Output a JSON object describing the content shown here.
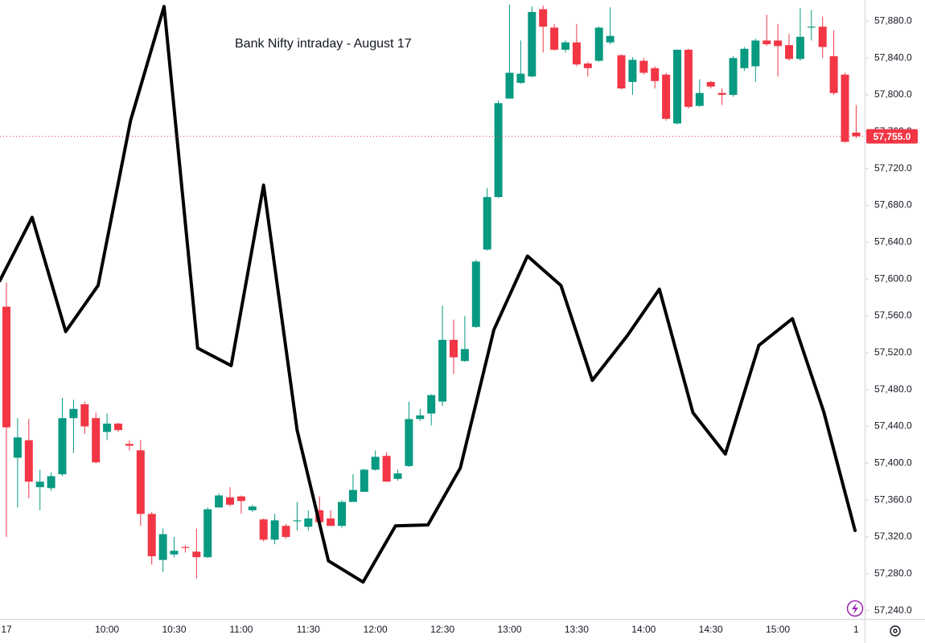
{
  "chart_data": {
    "type": "candlestick",
    "title": "Bank Nifty intraday - August 17",
    "categories": [
      "17",
      null,
      null,
      null,
      null,
      null,
      null,
      null,
      null,
      "10:00",
      null,
      null,
      null,
      null,
      null,
      "10:30",
      null,
      null,
      null,
      null,
      null,
      "11:00",
      null,
      null,
      null,
      null,
      null,
      "11:30",
      null,
      null,
      null,
      null,
      null,
      "12:00",
      null,
      null,
      null,
      null,
      null,
      "12:30",
      null,
      null,
      null,
      null,
      null,
      "13:00",
      null,
      null,
      null,
      null,
      null,
      "13:30",
      null,
      null,
      null,
      null,
      null,
      "14:00",
      null,
      null,
      null,
      null,
      null,
      "14:30",
      null,
      null,
      null,
      null,
      null,
      "15:00",
      null,
      null,
      null,
      null,
      null,
      null,
      "1"
    ],
    "open": [
      57570,
      57406,
      57425,
      57374,
      57373,
      57388,
      57449,
      57464,
      57449,
      57434,
      57443,
      57421,
      57414,
      57345,
      57295,
      57301,
      57309,
      57304,
      57298,
      57352,
      57363,
      57364,
      57349,
      57339,
      57317,
      57332,
      57337,
      57331,
      57349,
      57340,
      57332,
      57358,
      57369,
      57393,
      57408,
      57383,
      57397,
      57448,
      57454,
      57467,
      57534,
      57511,
      57548,
      57632,
      57689,
      57796,
      57813,
      57820,
      57893,
      57873,
      57849,
      57857,
      57834,
      57837,
      57857,
      57843,
      57814,
      57837,
      57829,
      57822,
      57769,
      57849,
      57788,
      57814,
      57802,
      57800,
      57829,
      57831,
      57859,
      57859,
      57854,
      57839,
      57873,
      57874,
      57842,
      57822,
      57759
    ],
    "high": [
      57596,
      57449,
      57448,
      57393,
      57390,
      57471,
      57469,
      57467,
      57455,
      57454,
      57444,
      57425,
      57425,
      57347,
      57329,
      57320,
      57311,
      57329,
      57352,
      57367,
      57374,
      57365,
      57355,
      57340,
      57345,
      57334,
      57358,
      57349,
      57364,
      57349,
      57360,
      57388,
      57394,
      57414,
      57412,
      57393,
      57467,
      57459,
      57475,
      57571,
      57556,
      57560,
      57621,
      57699,
      57794,
      57898,
      57859,
      57896,
      57897,
      57877,
      57859,
      57877,
      57836,
      57874,
      57895,
      57844,
      57841,
      57840,
      57831,
      57824,
      57849,
      57850,
      57817,
      57815,
      57807,
      57842,
      57852,
      57861,
      57887,
      57877,
      57866,
      57894,
      57892,
      57885,
      57870,
      57824,
      57789
    ],
    "low": [
      57320,
      57352,
      57362,
      57349,
      57370,
      57386,
      57411,
      57432,
      57400,
      57425,
      57434,
      57414,
      57332,
      57290,
      57282,
      57298,
      57303,
      57275,
      57297,
      57352,
      57353,
      57345,
      57347,
      57315,
      57312,
      57318,
      57327,
      57327,
      57332,
      57332,
      57330,
      57358,
      57369,
      57392,
      57380,
      57381,
      57396,
      57446,
      57441,
      57462,
      57497,
      57510,
      57547,
      57631,
      57688,
      57796,
      57812,
      57819,
      57846,
      57848,
      57846,
      57831,
      57820,
      57836,
      57855,
      57806,
      57800,
      57822,
      57807,
      57772,
      57768,
      57785,
      57787,
      57807,
      57789,
      57798,
      57826,
      57814,
      57853,
      57820,
      57837,
      57837,
      57859,
      57840,
      57800,
      57748,
      57753
    ],
    "close": [
      57439,
      57428,
      57380,
      57380,
      57386,
      57449,
      57459,
      57440,
      57401,
      57443,
      57436,
      57419,
      57345,
      57299,
      57323,
      57305,
      57308,
      57298,
      57350,
      57365,
      57355,
      57359,
      57353,
      57317,
      57338,
      57320,
      57338,
      57340,
      57336,
      57332,
      57358,
      57371,
      57393,
      57407,
      57380,
      57389,
      57448,
      57452,
      57474,
      57534,
      57515,
      57524,
      57619,
      57689,
      57791,
      57824,
      57823,
      57890,
      57874,
      57849,
      57857,
      57833,
      57829,
      57873,
      57864,
      57807,
      57838,
      57824,
      57815,
      57774,
      57849,
      57787,
      57802,
      57809,
      57800,
      57840,
      57850,
      57859,
      57855,
      57853,
      57839,
      57863,
      57874,
      57852,
      57802,
      57749,
      57755
    ],
    "up_color": "#089981",
    "down_color": "#f23645",
    "ylim": [
      57231,
      57903
    ],
    "yticks": [
      {
        "value": 57240,
        "label": "57,240.0"
      },
      {
        "value": 57280,
        "label": "57,280.0"
      },
      {
        "value": 57320,
        "label": "57,320.0"
      },
      {
        "value": 57360,
        "label": "57,360.0"
      },
      {
        "value": 57400,
        "label": "57,400.0"
      },
      {
        "value": 57440,
        "label": "57,440.0"
      },
      {
        "value": 57480,
        "label": "57,480.0"
      },
      {
        "value": 57520,
        "label": "57,520.0"
      },
      {
        "value": 57560,
        "label": "57,560.0"
      },
      {
        "value": 57600,
        "label": "57,600.0"
      },
      {
        "value": 57640,
        "label": "57,640.0"
      },
      {
        "value": 57680,
        "label": "57,680.0"
      },
      {
        "value": 57720,
        "label": "57,720.0"
      },
      {
        "value": 57760,
        "label": "57,760.0"
      },
      {
        "value": 57800,
        "label": "57,800.0"
      },
      {
        "value": 57840,
        "label": "57,840.0"
      },
      {
        "value": 57880,
        "label": "57,880.0"
      }
    ],
    "last_price": {
      "value": 57755,
      "label": "57,755.0"
    },
    "overlay": {
      "type": "line",
      "color": "#000000",
      "x": [
        -0.6,
        2.3,
        5.3,
        8.2,
        11.1,
        14.1,
        17.1,
        20.1,
        23,
        26,
        28.8,
        31.9,
        34.8,
        37.7,
        40.6,
        43.6,
        46.6,
        49.6,
        52.4,
        55.5,
        58.4,
        61.4,
        64.3,
        67.3,
        70.3,
        73.1,
        75.9
      ],
      "values": [
        57598,
        57667,
        57543,
        57593,
        57772,
        57896,
        57525,
        57506,
        57702,
        57436,
        57294,
        57271,
        57332,
        57333,
        57395,
        57545,
        57625,
        57593,
        57490,
        57538,
        57589,
        57455,
        57410,
        57528,
        57557,
        57456,
        57327
      ]
    }
  }
}
